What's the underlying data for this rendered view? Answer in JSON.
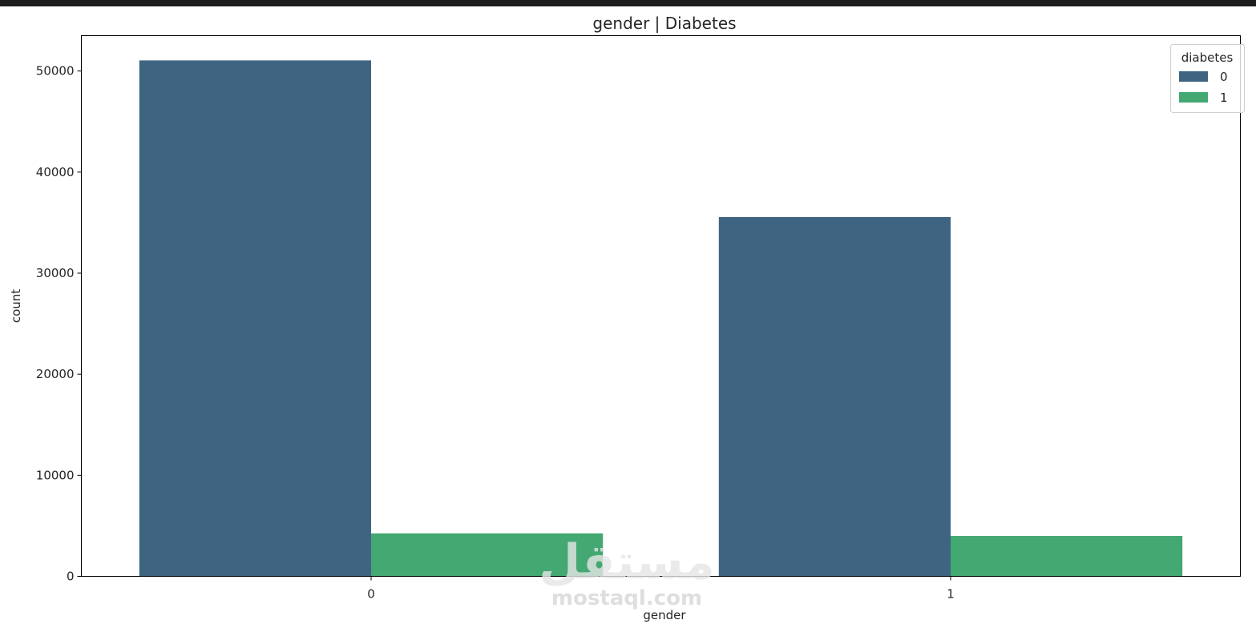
{
  "chart_data": {
    "type": "bar",
    "title": "gender  |  Diabetes",
    "xlabel": "gender",
    "ylabel": "count",
    "categories": [
      "0",
      "1"
    ],
    "series": [
      {
        "name": "0",
        "color": "#3e6482",
        "values": [
          51050,
          35550
        ]
      },
      {
        "name": "1",
        "color": "#43a872",
        "values": [
          4250,
          4000
        ]
      }
    ],
    "ylim": [
      0,
      53500
    ],
    "yticks": [
      0,
      10000,
      20000,
      30000,
      40000,
      50000
    ],
    "grid": false,
    "legend": {
      "title": "diabetes",
      "placement": "top-right"
    }
  },
  "watermark": {
    "arabic": "مستقل",
    "text": "mostaql.com"
  }
}
